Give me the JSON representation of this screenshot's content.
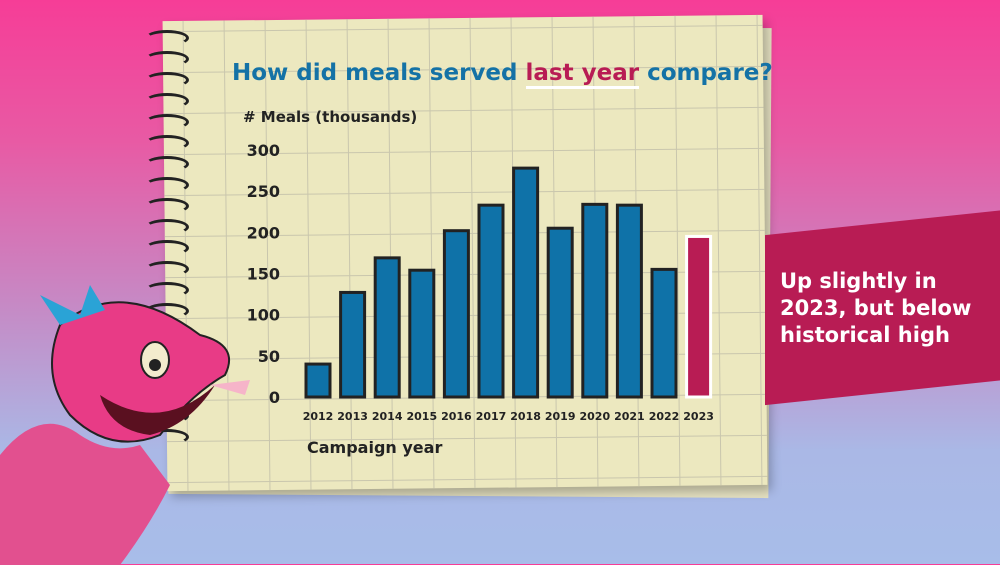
{
  "chart_data": {
    "type": "bar",
    "title_parts": [
      "How did meals served ",
      "last year",
      " compare?"
    ],
    "ylabel": "# Meals (thousands)",
    "xlabel": "Campaign year",
    "categories": [
      "2012",
      "2013",
      "2014",
      "2015",
      "2016",
      "2017",
      "2018",
      "2019",
      "2020",
      "2021",
      "2022",
      "2023"
    ],
    "values": [
      40,
      127,
      169,
      154,
      202,
      233,
      278,
      205,
      234,
      233,
      155,
      195
    ],
    "highlight": "2023",
    "ylim": [
      0,
      300
    ],
    "yticks": [
      "0",
      "50",
      "100",
      "150",
      "200",
      "250",
      "300"
    ],
    "grid": true,
    "colors": {
      "bar": "#0f72a8",
      "highlight": "#b81c54",
      "outline": "#222222"
    }
  },
  "callout": "Up slightly in 2023, but below historical high"
}
